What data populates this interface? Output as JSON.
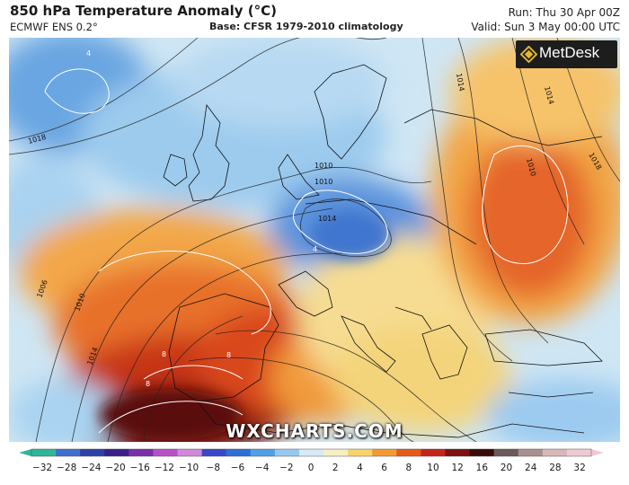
{
  "header": {
    "title": "850 hPa Temperature Anomaly (°C)",
    "model": "ECMWF ENS 0.2°",
    "base": "Base: CFSR 1979-2010 climatology",
    "run": "Run: Thu 30 Apr 00Z",
    "valid": "Valid: Sun 3 May 00:00 UTC"
  },
  "branding": {
    "logo_text": "MetDesk",
    "watermark": "WXCHARTS.COM"
  },
  "isobar_labels": [
    "1018",
    "1010",
    "1014",
    "1006",
    "1010",
    "1014",
    "1014",
    "1010",
    "1018",
    "1014",
    "1010"
  ],
  "anomaly_labels": [
    "4",
    "4",
    "8",
    "8",
    "8"
  ],
  "colorbar": {
    "ticks": [
      "−32",
      "−28",
      "−24",
      "−20",
      "−16",
      "−12",
      "−10",
      "−8",
      "−6",
      "−4",
      "−2",
      "0",
      "2",
      "4",
      "6",
      "8",
      "10",
      "12",
      "16",
      "20",
      "24",
      "28",
      "32"
    ],
    "colors": [
      "#2fb59a",
      "#3d6fcf",
      "#2f3fa8",
      "#3a1f8a",
      "#7a2fa8",
      "#b94fc8",
      "#d287d9",
      "#3b47c9",
      "#2e6fd6",
      "#4fa0e6",
      "#93c9ef",
      "#d7ebf6",
      "#f7efc3",
      "#f8d36c",
      "#f39b33",
      "#e45b1c",
      "#c2261a",
      "#7d1210",
      "#3a0a0a",
      "#6b5a5a",
      "#a89090",
      "#d7b7b7",
      "#f0c9d2"
    ]
  },
  "colors": {
    "warm_core": "#7a1410",
    "cold_core": "#2d62c9"
  }
}
